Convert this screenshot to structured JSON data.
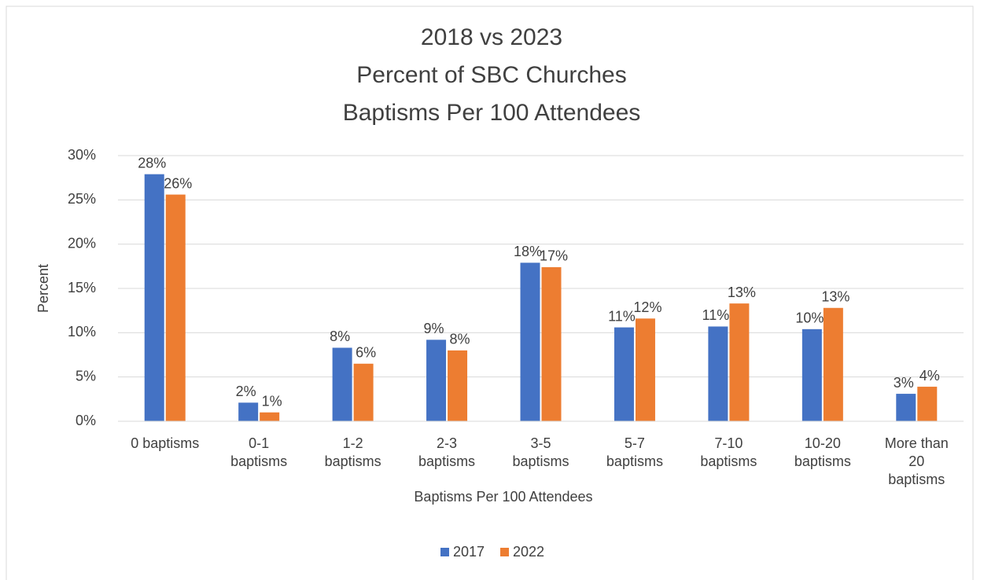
{
  "chart_data": {
    "type": "bar",
    "title": [
      "2018 vs 2023",
      "Percent of SBC Churches",
      "Baptisms Per 100 Attendees"
    ],
    "x_label": "Baptisms Per 100 Attendees",
    "y_label": "Percent",
    "categories": [
      "0 baptisms",
      "0-1 baptisms",
      "1-2 baptisms",
      "2-3 baptisms",
      "3-5 baptisms",
      "5-7 baptisms",
      "7-10 baptisms",
      "10-20 baptisms",
      "More than 20 baptisms"
    ],
    "series": [
      {
        "name": "2017",
        "color": "#4472c4",
        "values": [
          27.9,
          2.1,
          8.3,
          9.2,
          17.9,
          10.6,
          10.7,
          10.4,
          3.1
        ],
        "value_labels": [
          "28%",
          "2%",
          "8%",
          "9%",
          "18%",
          "11%",
          "11%",
          "10%",
          "3%"
        ]
      },
      {
        "name": "2022",
        "color": "#ed7d31",
        "values": [
          25.6,
          1.0,
          6.5,
          8.0,
          17.4,
          11.6,
          13.3,
          12.8,
          3.9
        ],
        "value_labels": [
          "26%",
          "1%",
          "6%",
          "8%",
          "17%",
          "12%",
          "13%",
          "13%",
          "4%"
        ]
      }
    ],
    "ylim": [
      0,
      30
    ],
    "yticks": [
      {
        "value": 0,
        "label": "0%"
      },
      {
        "value": 5,
        "label": "5%"
      },
      {
        "value": 10,
        "label": "10%"
      },
      {
        "value": 15,
        "label": "15%"
      },
      {
        "value": 20,
        "label": "20%"
      },
      {
        "value": 25,
        "label": "25%"
      },
      {
        "value": 30,
        "label": "30%"
      }
    ],
    "grid": true,
    "legend": "bottom"
  }
}
